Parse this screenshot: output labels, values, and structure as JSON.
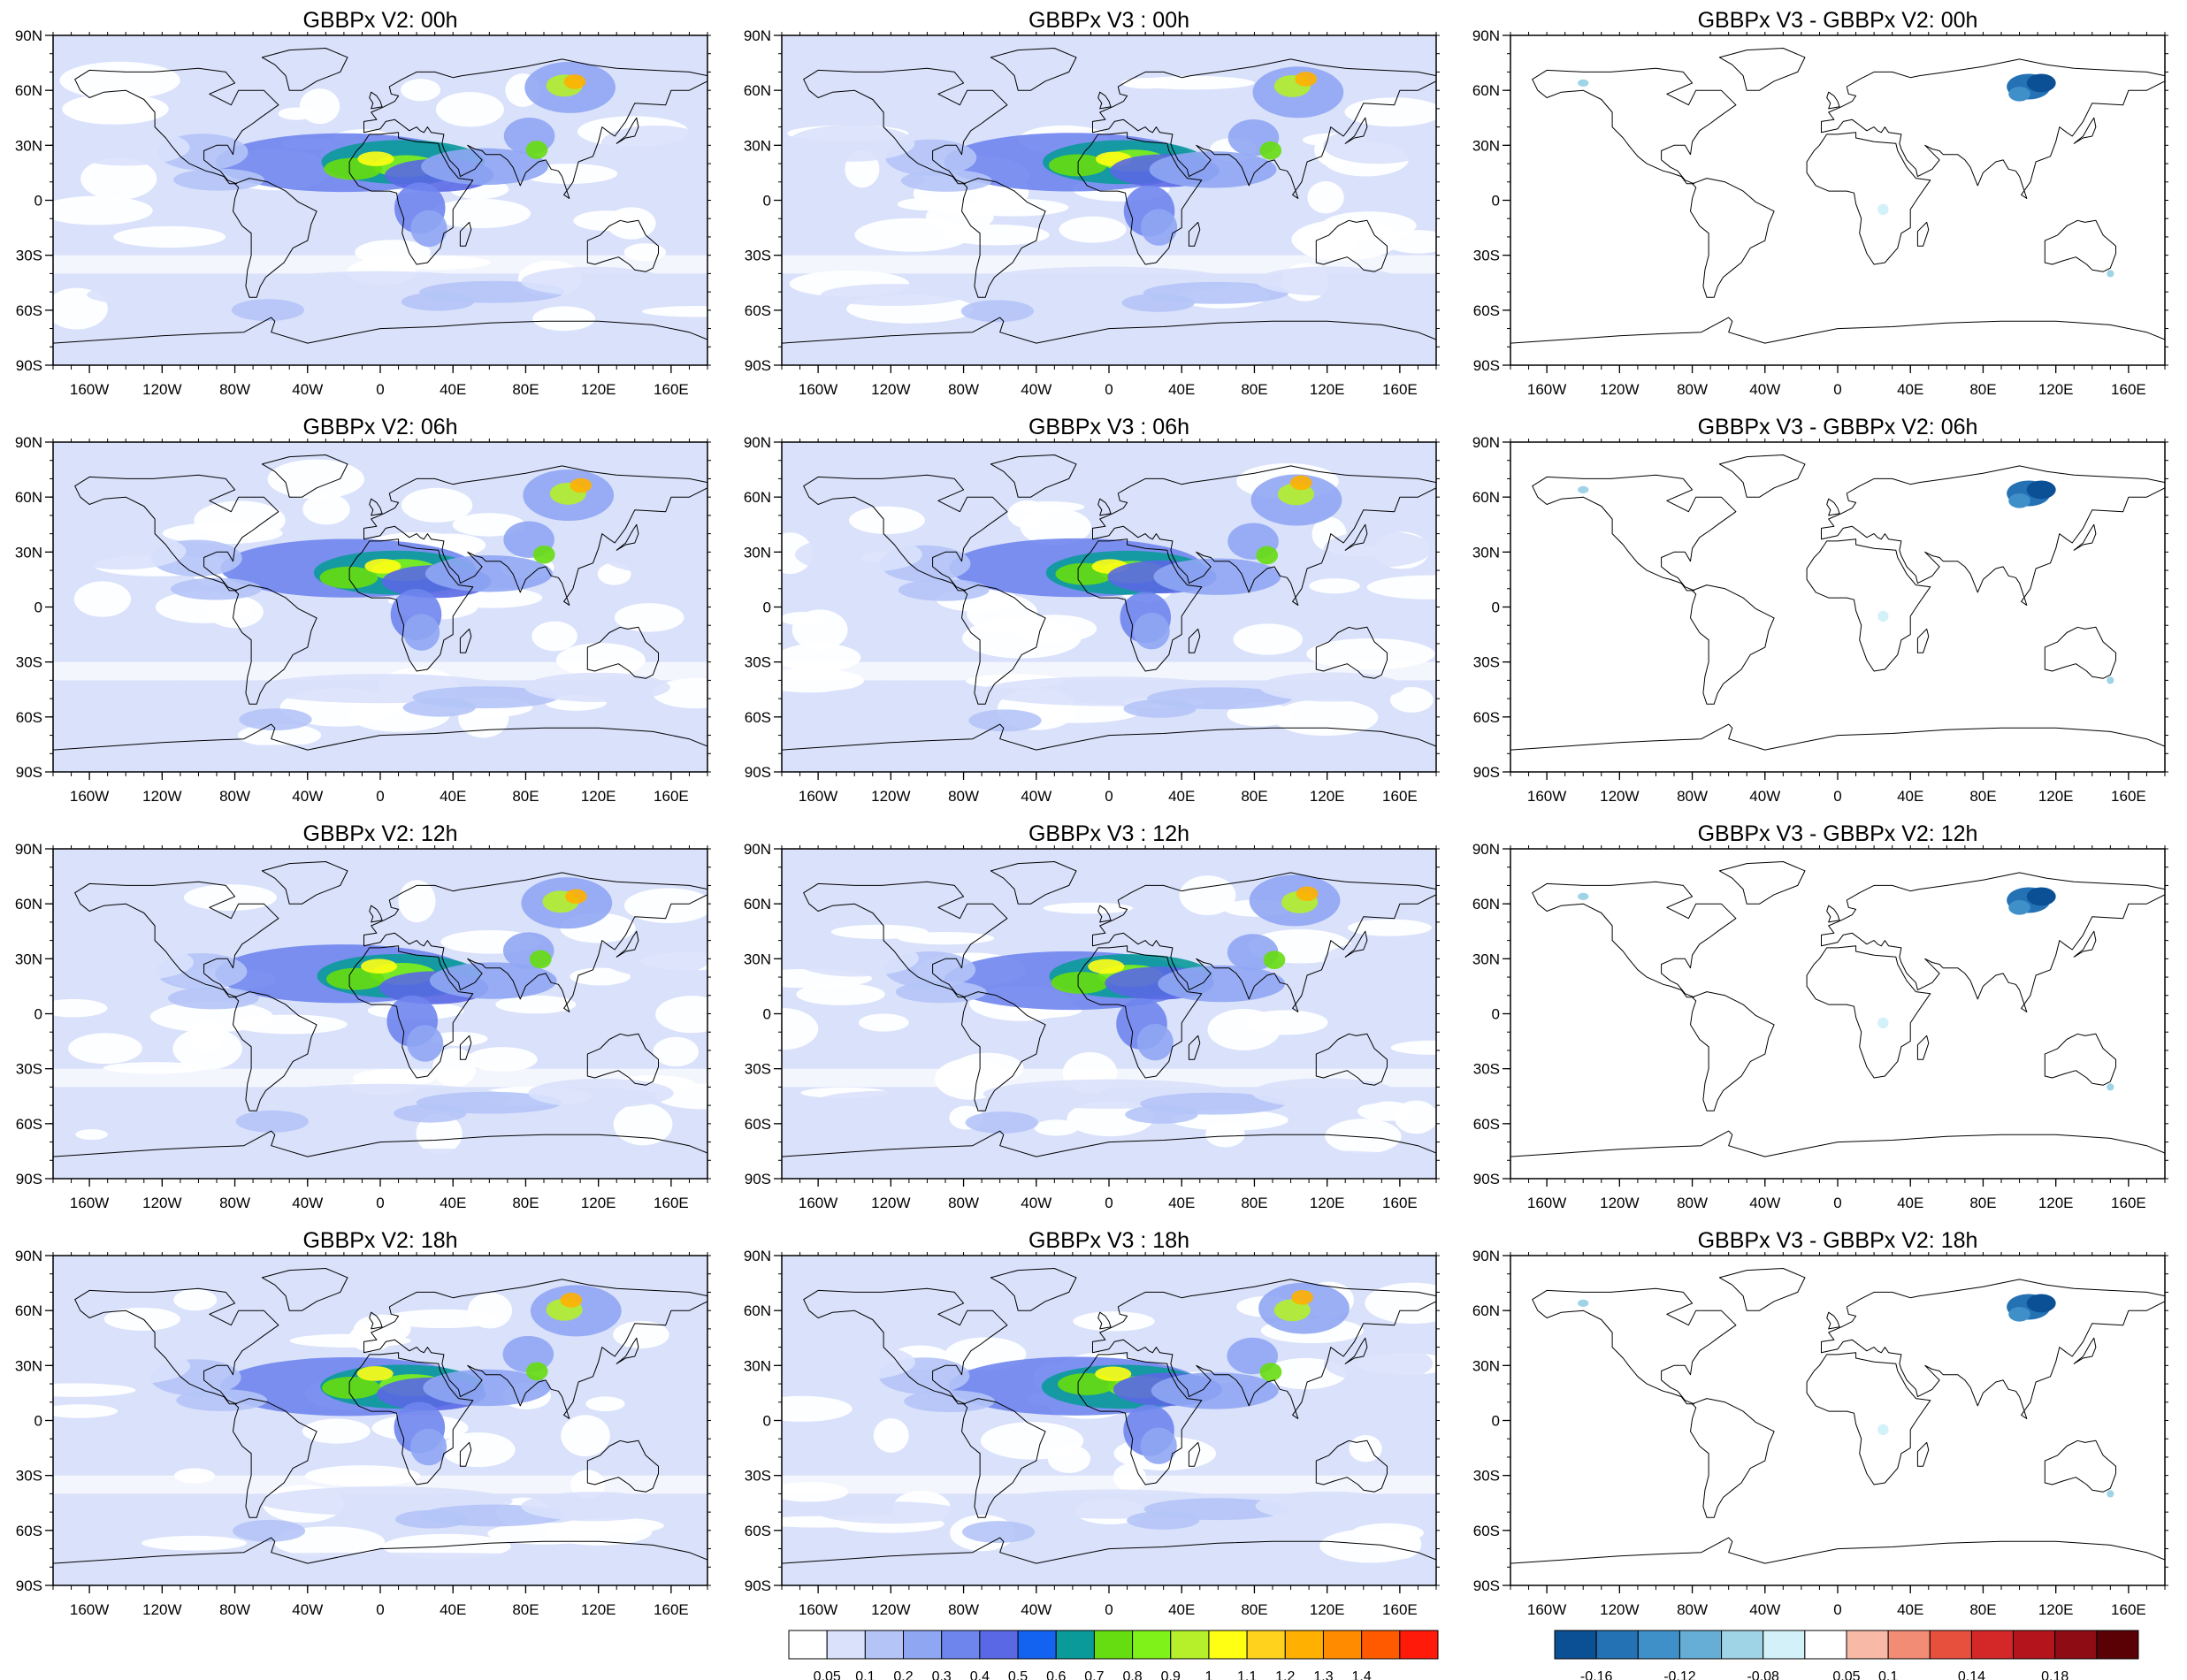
{
  "panels": [
    {
      "title": "GBBPx V2: 00h",
      "kind": "field",
      "seed": 11
    },
    {
      "title": "GBBPx V3 : 00h",
      "kind": "field",
      "seed": 23
    },
    {
      "title": "GBBPx V3 - GBBPx V2: 00h",
      "kind": "diff",
      "seed": 31
    },
    {
      "title": "GBBPx V2: 06h",
      "kind": "field",
      "seed": 41
    },
    {
      "title": "GBBPx V3 : 06h",
      "kind": "field",
      "seed": 53
    },
    {
      "title": "GBBPx V3 - GBBPx V2: 06h",
      "kind": "diff",
      "seed": 61
    },
    {
      "title": "GBBPx V2: 12h",
      "kind": "field",
      "seed": 71
    },
    {
      "title": "GBBPx V3 : 12h",
      "kind": "field",
      "seed": 83
    },
    {
      "title": "GBBPx V3 - GBBPx V2: 12h",
      "kind": "diff",
      "seed": 97
    },
    {
      "title": "GBBPx V2: 18h",
      "kind": "field",
      "seed": 101
    },
    {
      "title": "GBBPx V3 : 18h",
      "kind": "field",
      "seed": 113
    },
    {
      "title": "GBBPx V3 - GBBPx V2: 18h",
      "kind": "diff",
      "seed": 127
    }
  ],
  "lat_labels": [
    "90N",
    "60N",
    "30N",
    "0",
    "30S",
    "60S",
    "90S"
  ],
  "lon_labels": [
    "160W",
    "120W",
    "80W",
    "40W",
    "0",
    "40E",
    "80E",
    "120E",
    "160E"
  ],
  "lon_values": [
    -160,
    -120,
    -80,
    -40,
    0,
    40,
    80,
    120,
    160
  ],
  "lat_values": [
    90,
    60,
    30,
    0,
    -30,
    -60,
    -90
  ],
  "colorbar_field": {
    "colors": [
      "#ffffff",
      "#d9e1fb",
      "#b4c4f7",
      "#8fa6f3",
      "#6f85ee",
      "#5a68e6",
      "#1462f0",
      "#0a9a9a",
      "#66dd10",
      "#7ff21a",
      "#b5f02a",
      "#ffff14",
      "#ffd21e",
      "#ffb000",
      "#ff8c00",
      "#ff5a00",
      "#ff1a0a"
    ],
    "labels": [
      "0.05",
      "0.1",
      "0.2",
      "0.3",
      "0.4",
      "0.5",
      "0.6",
      "0.7",
      "0.8",
      "0.9",
      "1",
      "1.1",
      "1.2",
      "1.3",
      "1.4"
    ]
  },
  "colorbar_diff": {
    "colors": [
      "#0b4f94",
      "#2471b4",
      "#3f8fc8",
      "#67aed6",
      "#9fd3e6",
      "#d3f1f9",
      "#ffffff",
      "#f8b9a6",
      "#f28c74",
      "#e8503e",
      "#d42727",
      "#b4151d",
      "#8e0c13",
      "#5a0106"
    ],
    "labels": [
      "-0.16",
      "-0.12",
      "-0.08",
      "0.05",
      "0.1",
      "0.14",
      "0.18"
    ]
  }
}
